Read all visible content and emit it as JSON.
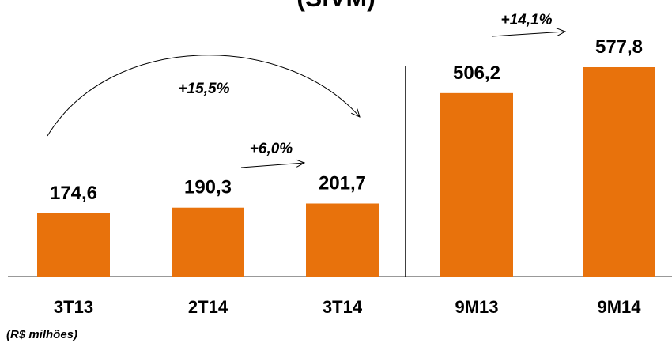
{
  "chart_data": {
    "type": "bar",
    "title": "(SIVM)",
    "categories": [
      "3T13",
      "2T14",
      "3T14",
      "9M13",
      "9M14"
    ],
    "values": [
      174.6,
      190.3,
      201.7,
      506.2,
      577.8
    ],
    "value_labels": [
      "174,6",
      "190,3",
      "201,7",
      "506,2",
      "577,8"
    ],
    "color": "#e8720c",
    "annotations": [
      "+15,5%",
      "+6,0%",
      "+14,1%"
    ],
    "note": "(R$ milhões)"
  }
}
